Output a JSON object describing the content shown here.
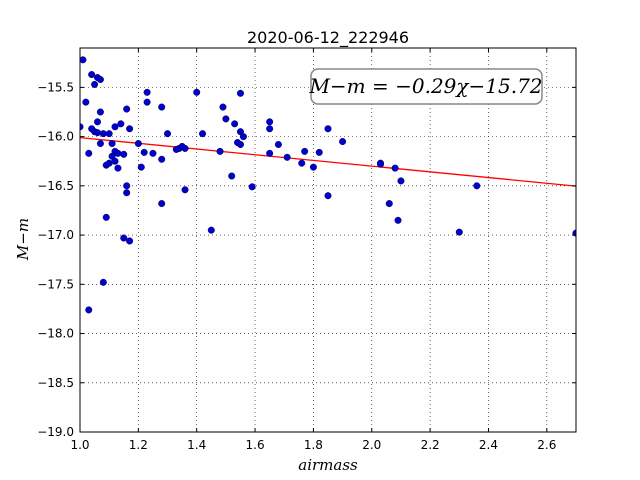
{
  "chart_data": {
    "type": "scatter",
    "title": "2020-06-12_222946",
    "xlabel": "airmass",
    "ylabel": "M−m",
    "xlim": [
      1.0,
      2.7
    ],
    "ylim": [
      -19.0,
      -15.1
    ],
    "x_ticks": [
      1.0,
      1.2,
      1.4,
      1.6,
      1.8,
      2.0,
      2.2,
      2.4,
      2.6
    ],
    "x_tick_labels": [
      "1.0",
      "1.2",
      "1.4",
      "1.6",
      "1.8",
      "2.0",
      "2.2",
      "2.4",
      "2.6"
    ],
    "y_ticks": [
      -15.5,
      -16.0,
      -16.5,
      -17.0,
      -17.5,
      -18.0,
      -18.5,
      -19.0
    ],
    "y_tick_labels": [
      "−15.5",
      "−16.0",
      "−16.5",
      "−17.0",
      "−17.5",
      "−18.0",
      "−18.5",
      "−19.0"
    ],
    "grid": true,
    "annotation": "M−m = −0.29χ−15.72",
    "fit_line": {
      "slope": -0.29,
      "intercept": -15.72,
      "color": "#ff0000"
    },
    "marker_color": "#0000cc",
    "points": [
      [
        1.0,
        -15.9
      ],
      [
        1.01,
        -15.22
      ],
      [
        1.02,
        -15.65
      ],
      [
        1.03,
        -16.17
      ],
      [
        1.03,
        -17.76
      ],
      [
        1.04,
        -15.92
      ],
      [
        1.04,
        -15.37
      ],
      [
        1.05,
        -15.47
      ],
      [
        1.05,
        -15.95
      ],
      [
        1.06,
        -15.85
      ],
      [
        1.06,
        -15.4
      ],
      [
        1.06,
        -15.96
      ],
      [
        1.07,
        -16.07
      ],
      [
        1.07,
        -15.75
      ],
      [
        1.07,
        -15.42
      ],
      [
        1.08,
        -15.97
      ],
      [
        1.08,
        -17.48
      ],
      [
        1.09,
        -16.29
      ],
      [
        1.09,
        -16.82
      ],
      [
        1.1,
        -16.27
      ],
      [
        1.1,
        -15.97
      ],
      [
        1.11,
        -16.07
      ],
      [
        1.11,
        -16.2
      ],
      [
        1.12,
        -16.15
      ],
      [
        1.12,
        -16.25
      ],
      [
        1.12,
        -15.9
      ],
      [
        1.13,
        -16.17
      ],
      [
        1.13,
        -16.32
      ],
      [
        1.14,
        -15.87
      ],
      [
        1.15,
        -16.18
      ],
      [
        1.15,
        -17.03
      ],
      [
        1.16,
        -16.5
      ],
      [
        1.16,
        -16.57
      ],
      [
        1.16,
        -15.72
      ],
      [
        1.17,
        -15.92
      ],
      [
        1.17,
        -17.06
      ],
      [
        1.2,
        -16.07
      ],
      [
        1.21,
        -16.31
      ],
      [
        1.22,
        -16.16
      ],
      [
        1.23,
        -15.55
      ],
      [
        1.23,
        -15.65
      ],
      [
        1.25,
        -16.17
      ],
      [
        1.28,
        -15.7
      ],
      [
        1.28,
        -16.23
      ],
      [
        1.28,
        -16.68
      ],
      [
        1.3,
        -15.97
      ],
      [
        1.33,
        -16.13
      ],
      [
        1.34,
        -16.12
      ],
      [
        1.35,
        -16.1
      ],
      [
        1.36,
        -16.12
      ],
      [
        1.36,
        -16.54
      ],
      [
        1.4,
        -15.55
      ],
      [
        1.42,
        -15.97
      ],
      [
        1.45,
        -16.95
      ],
      [
        1.48,
        -16.15
      ],
      [
        1.49,
        -15.7
      ],
      [
        1.5,
        -15.82
      ],
      [
        1.52,
        -16.4
      ],
      [
        1.53,
        -15.87
      ],
      [
        1.54,
        -16.06
      ],
      [
        1.55,
        -15.56
      ],
      [
        1.55,
        -15.95
      ],
      [
        1.55,
        -16.08
      ],
      [
        1.56,
        -16.0
      ],
      [
        1.59,
        -16.51
      ],
      [
        1.65,
        -15.85
      ],
      [
        1.65,
        -15.92
      ],
      [
        1.65,
        -16.17
      ],
      [
        1.68,
        -16.08
      ],
      [
        1.71,
        -16.21
      ],
      [
        1.76,
        -16.27
      ],
      [
        1.77,
        -16.15
      ],
      [
        1.8,
        -16.31
      ],
      [
        1.82,
        -16.16
      ],
      [
        1.85,
        -15.92
      ],
      [
        1.85,
        -16.6
      ],
      [
        1.9,
        -16.05
      ],
      [
        2.03,
        -16.27
      ],
      [
        2.03,
        -16.28
      ],
      [
        2.06,
        -16.68
      ],
      [
        2.08,
        -16.32
      ],
      [
        2.09,
        -16.85
      ],
      [
        2.1,
        -16.45
      ],
      [
        2.3,
        -16.97
      ],
      [
        2.36,
        -16.5
      ],
      [
        2.7,
        -16.98
      ]
    ]
  }
}
